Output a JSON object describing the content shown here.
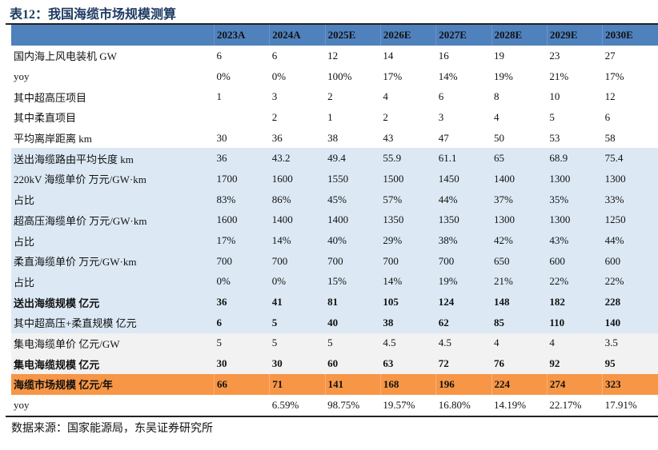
{
  "title": "表12：我国海缆市场规模测算",
  "columns": [
    "2023A",
    "2024A",
    "2025E",
    "2026E",
    "2027E",
    "2028E",
    "2029E",
    "2030E"
  ],
  "rows": [
    {
      "label": "国内海上风电装机 GW",
      "values": [
        "6",
        "6",
        "12",
        "14",
        "16",
        "19",
        "23",
        "27"
      ],
      "style": "white",
      "bold_label": false,
      "bold_values": false
    },
    {
      "label": "yoy",
      "values": [
        "0%",
        "0%",
        "100%",
        "17%",
        "14%",
        "19%",
        "21%",
        "17%"
      ],
      "style": "white",
      "bold_label": false,
      "bold_values": false
    },
    {
      "label": "其中超高压项目",
      "values": [
        "1",
        "3",
        "2",
        "4",
        "6",
        "8",
        "10",
        "12"
      ],
      "style": "white",
      "bold_label": false,
      "bold_values": false
    },
    {
      "label": "其中柔直项目",
      "values": [
        "",
        "2",
        "1",
        "2",
        "3",
        "4",
        "5",
        "6"
      ],
      "style": "white",
      "bold_label": false,
      "bold_values": false
    },
    {
      "label": "平均离岸距离 km",
      "values": [
        "30",
        "36",
        "38",
        "43",
        "47",
        "50",
        "53",
        "58"
      ],
      "style": "white",
      "bold_label": false,
      "bold_values": false
    },
    {
      "label": "送出海缆路由平均长度 km",
      "values": [
        "36",
        "43.2",
        "49.4",
        "55.9",
        "61.1",
        "65",
        "68.9",
        "75.4"
      ],
      "style": "blue",
      "bold_label": false,
      "bold_values": false
    },
    {
      "label": "220kV 海缆单价 万元/GW·km",
      "values": [
        "1700",
        "1600",
        "1550",
        "1500",
        "1450",
        "1400",
        "1300",
        "1300"
      ],
      "style": "blue",
      "bold_label": false,
      "bold_values": false
    },
    {
      "label": "占比",
      "values": [
        "83%",
        "86%",
        "45%",
        "57%",
        "44%",
        "37%",
        "35%",
        "33%"
      ],
      "style": "blue",
      "bold_label": false,
      "bold_values": false
    },
    {
      "label": "超高压海缆单价 万元/GW·km",
      "values": [
        "1600",
        "1400",
        "1400",
        "1350",
        "1350",
        "1300",
        "1300",
        "1250"
      ],
      "style": "blue",
      "bold_label": false,
      "bold_values": false
    },
    {
      "label": "占比",
      "values": [
        "17%",
        "14%",
        "40%",
        "29%",
        "38%",
        "42%",
        "43%",
        "44%"
      ],
      "style": "blue",
      "bold_label": false,
      "bold_values": false
    },
    {
      "label": "柔直海缆单价 万元/GW·km",
      "values": [
        "700",
        "700",
        "700",
        "700",
        "700",
        "650",
        "600",
        "600"
      ],
      "style": "blue",
      "bold_label": false,
      "bold_values": false
    },
    {
      "label": "占比",
      "values": [
        "0%",
        "0%",
        "15%",
        "14%",
        "19%",
        "21%",
        "22%",
        "22%"
      ],
      "style": "blue",
      "bold_label": false,
      "bold_values": false
    },
    {
      "label": "送出海缆规模 亿元",
      "values": [
        "36",
        "41",
        "81",
        "105",
        "124",
        "148",
        "182",
        "228"
      ],
      "style": "blue",
      "bold_label": true,
      "bold_values": true
    },
    {
      "label": "其中超高压+柔直规模 亿元",
      "values": [
        "6",
        "5",
        "40",
        "38",
        "62",
        "85",
        "110",
        "140"
      ],
      "style": "blue",
      "bold_label": false,
      "bold_values": true
    },
    {
      "label": "集电海缆单价 亿元/GW",
      "values": [
        "5",
        "5",
        "5",
        "4.5",
        "4.5",
        "4",
        "4",
        "3.5"
      ],
      "style": "grey",
      "bold_label": false,
      "bold_values": false
    },
    {
      "label": "集电海缆规模 亿元",
      "values": [
        "30",
        "30",
        "60",
        "63",
        "72",
        "76",
        "92",
        "95"
      ],
      "style": "grey",
      "bold_label": true,
      "bold_values": true
    },
    {
      "label": "海缆市场规模 亿元/年",
      "values": [
        "66",
        "71",
        "141",
        "168",
        "196",
        "224",
        "274",
        "323"
      ],
      "style": "orange",
      "bold_label": true,
      "bold_values": true
    },
    {
      "label": "yoy",
      "values": [
        "",
        "6.59%",
        "98.75%",
        "19.57%",
        "16.80%",
        "14.19%",
        "22.17%",
        "17.91%"
      ],
      "style": "white",
      "bold_label": false,
      "bold_values": false
    }
  ],
  "source": "数据来源：国家能源局，东吴证券研究所",
  "colors": {
    "header": "#4f81bd",
    "blue_rows": "#dce9f5",
    "grey_rows": "#f2f2f2",
    "highlight": "#f79646",
    "title": "#1f3a63"
  }
}
